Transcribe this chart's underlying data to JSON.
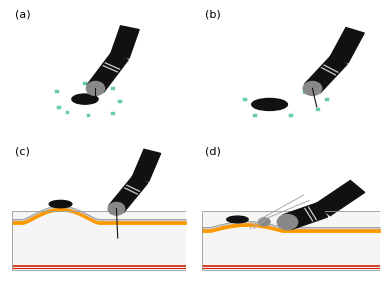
{
  "fig_width": 3.88,
  "fig_height": 2.84,
  "dpi": 100,
  "background_color": "#ffffff",
  "label_color": "#000000",
  "labels": [
    "(a)",
    "(b)",
    "(c)",
    "(d)"
  ],
  "endoscope_color": "#111111",
  "endoscope_stripe": "#cccccc",
  "tip_color": "#888888",
  "lesion_color": "#111111",
  "marker_color": "#66ccaa",
  "marker_edge": "#338866",
  "needle_color": "#111111",
  "ellipse_edge": "#999999",
  "layer_gray_color": "#cccccc",
  "layer_orange_color": "#ff9900",
  "layer_red_color": "#cc2200",
  "layer_box_edge": "#999999",
  "cap_color": "#888888",
  "tissue_color": "#e8e8e8",
  "bump_line_color": "#aaaaaa",
  "bump_orange_color": "#ff9900"
}
